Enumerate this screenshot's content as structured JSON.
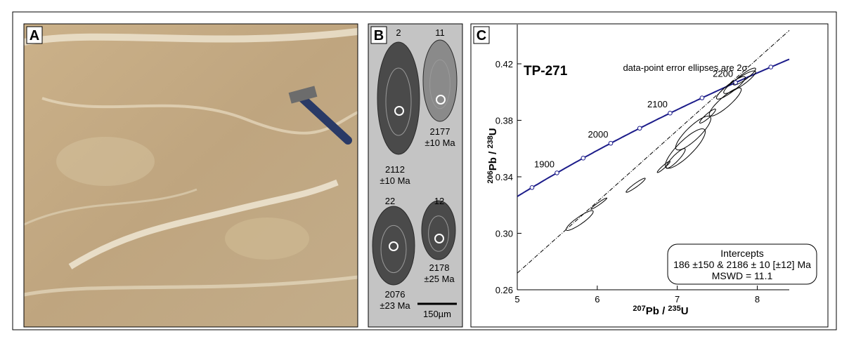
{
  "panel_labels": [
    "A",
    "B",
    "C"
  ],
  "zircons": [
    {
      "grain": "2",
      "age": "2112",
      "error": "±10 Ma"
    },
    {
      "grain": "11",
      "age": "2177",
      "error": "±10 Ma"
    },
    {
      "grain": "22",
      "age": "2076",
      "error": "±23 Ma"
    },
    {
      "grain": "12",
      "age": "2178",
      "error": "±25 Ma"
    }
  ],
  "scale_bar": "150µm",
  "chart_data": {
    "type": "concordia",
    "title": "TP-271",
    "note": "data-point error ellipses are 2σ",
    "x_label": {
      "mass": "207",
      "element": "Pb",
      "separator": " / ",
      "mass2": "235",
      "element2": "U"
    },
    "y_label": {
      "mass": "206",
      "element": "Pb",
      "separator": " / ",
      "mass2": "238",
      "element2": "U"
    },
    "xlim": [
      5,
      8.4
    ],
    "ylim": [
      0.26,
      0.44
    ],
    "xticks": [
      5,
      6,
      7,
      8
    ],
    "yticks": [
      0.26,
      {
        "value": 0.3,
        "label": "0.30"
      },
      0.34,
      0.38,
      0.42
    ],
    "concordia_ages": [
      1850,
      1900,
      1950,
      2000,
      2050,
      2100,
      2150,
      2200,
      2250
    ],
    "age_labels": [
      1900,
      2000,
      2100,
      2200
    ],
    "concordia_color": "#1c1c8a",
    "ellipses": {
      "x": [
        5.78,
        6.02,
        6.48,
        6.83,
        6.98,
        7.1,
        7.2,
        7.38,
        7.6,
        7.67,
        7.78,
        7.84
      ],
      "y": [
        0.309,
        0.321,
        0.334,
        0.347,
        0.353,
        0.36,
        0.371,
        0.383,
        0.393,
        0.403,
        0.407,
        0.411
      ],
      "x_err": [
        0.17,
        0.1,
        0.12,
        0.08,
        0.12,
        0.25,
        0.22,
        0.1,
        0.2,
        0.18,
        0.2,
        0.14
      ],
      "y_err": [
        0.007,
        0.004,
        0.005,
        0.004,
        0.007,
        0.014,
        0.012,
        0.005,
        0.01,
        0.008,
        0.008,
        0.006
      ],
      "rho": [
        0.9,
        0.97,
        0.95,
        0.95,
        0.9,
        0.85,
        0.85,
        0.92,
        0.88,
        0.9,
        0.9,
        0.9
      ]
    },
    "lower_intercept": 186,
    "upper_intercept": 2186,
    "intercepts": {
      "title": "Intercepts",
      "result": "186 ±150 & 2186 ± 10 [±12] Ma",
      "mswd": "MSWD = 11.1"
    }
  }
}
